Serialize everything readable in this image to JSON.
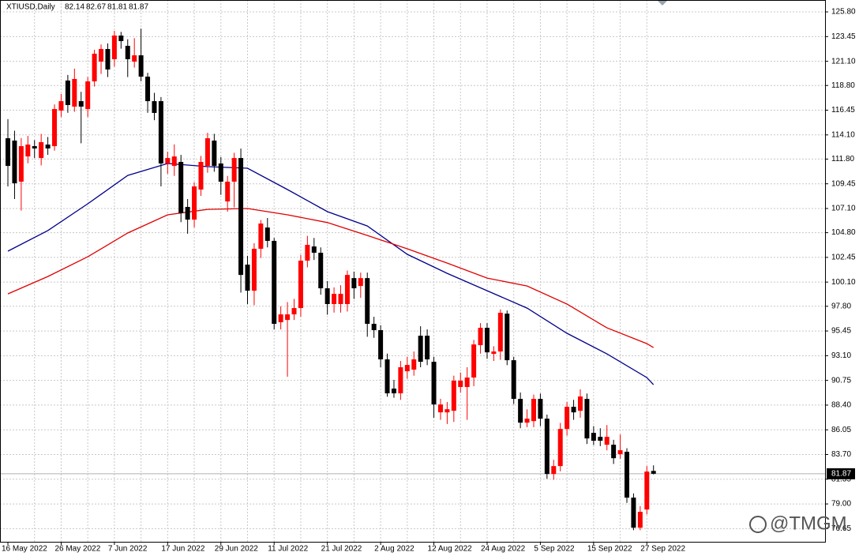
{
  "chart_data": {
    "type": "candlestick",
    "title": "XTIUSD,Daily",
    "watermark": "@TMGM",
    "up_color": "#ff0000",
    "down_color": "#000000",
    "grid": true,
    "ylim": [
      75.4,
      126.93
    ],
    "yticks": [
      {
        "value": 125.8,
        "label": "125.80"
      },
      123.45,
      {
        "value": 121.1,
        "label": "121.10"
      },
      {
        "value": 118.8,
        "label": "118.80"
      },
      116.45,
      {
        "value": 114.1,
        "label": "114.10"
      },
      {
        "value": 111.8,
        "label": "111.80"
      },
      109.45,
      {
        "value": 107.1,
        "label": "107.10"
      },
      {
        "value": 104.8,
        "label": "104.80"
      },
      102.45,
      {
        "value": 100.1,
        "label": "100.10"
      },
      {
        "value": 97.8,
        "label": "97.80"
      },
      95.45,
      {
        "value": 93.1,
        "label": "93.10"
      },
      90.75,
      {
        "value": 88.4,
        "label": "88.40"
      },
      86.05,
      {
        "value": 83.7,
        "label": "83.70"
      },
      81.35,
      {
        "value": 79.0,
        "label": "79.00"
      },
      76.65
    ],
    "categories": [
      "16 May 2022",
      null,
      null,
      null,
      null,
      null,
      null,
      null,
      "26 May 2022",
      null,
      null,
      null,
      null,
      null,
      null,
      null,
      "7 Jun 2022",
      null,
      null,
      null,
      null,
      null,
      null,
      null,
      "17 Jun 2022",
      null,
      null,
      null,
      null,
      null,
      null,
      null,
      "29 Jun 2022",
      null,
      null,
      null,
      null,
      null,
      null,
      null,
      "11 Jul 2022",
      null,
      null,
      null,
      null,
      null,
      null,
      null,
      "21 Jul 2022",
      null,
      null,
      null,
      null,
      null,
      null,
      null,
      "2 Aug 2022",
      null,
      null,
      null,
      null,
      null,
      null,
      null,
      "12 Aug 2022",
      null,
      null,
      null,
      null,
      null,
      null,
      null,
      "24 Aug 2022",
      null,
      null,
      null,
      null,
      null,
      null,
      null,
      "5 Sep 2022",
      null,
      null,
      null,
      null,
      null,
      null,
      null,
      "15 Sep 2022",
      null,
      null,
      null,
      null,
      null,
      null,
      null,
      "27 Sep 2022",
      null
    ],
    "ohlc": [
      [
        113.78,
        115.6,
        109.2,
        111.15
      ],
      [
        113.56,
        114.5,
        108.0,
        109.5
      ],
      [
        109.65,
        113.8,
        106.9,
        113.03
      ],
      [
        112.05,
        114.0,
        111.4,
        113.18
      ],
      [
        113.03,
        113.6,
        111.9,
        112.81
      ],
      [
        111.9,
        114.2,
        111.2,
        113.41
      ],
      [
        113.18,
        113.9,
        112.2,
        112.81
      ],
      [
        113.03,
        117.0,
        112.6,
        116.56
      ],
      [
        116.41,
        118.0,
        115.8,
        117.31
      ],
      [
        119.27,
        119.8,
        116.2,
        116.94
      ],
      [
        116.79,
        120.4,
        116.3,
        119.42
      ],
      [
        117.31,
        118.2,
        113.3,
        116.79
      ],
      [
        116.56,
        119.6,
        115.8,
        119.19
      ],
      [
        119.19,
        122.2,
        118.7,
        121.82
      ],
      [
        121.07,
        122.7,
        119.9,
        122.27
      ],
      [
        122.27,
        122.8,
        119.6,
        120.32
      ],
      [
        121.3,
        124.0,
        120.6,
        123.55
      ],
      [
        123.55,
        123.9,
        122.3,
        123.02
      ],
      [
        122.57,
        123.2,
        119.6,
        121.3
      ],
      [
        121.07,
        123.3,
        120.5,
        121.67
      ],
      [
        121.67,
        124.2,
        119.2,
        119.64
      ],
      [
        119.64,
        120.0,
        116.2,
        117.31
      ],
      [
        117.31,
        118.1,
        115.5,
        116.19
      ],
      [
        117.31,
        117.7,
        109.2,
        111.38
      ],
      [
        111.38,
        112.5,
        110.4,
        111.9
      ],
      [
        111.15,
        113.2,
        110.2,
        112.05
      ],
      [
        111.53,
        112.2,
        105.8,
        106.65
      ],
      [
        107.25,
        108.0,
        104.7,
        106.04
      ],
      [
        106.04,
        109.6,
        105.3,
        109.2
      ],
      [
        108.9,
        112.1,
        108.3,
        111.53
      ],
      [
        111.15,
        114.3,
        110.5,
        113.78
      ],
      [
        113.56,
        114.2,
        110.6,
        111.15
      ],
      [
        111.38,
        112.0,
        108.4,
        109.65
      ],
      [
        107.77,
        110.2,
        106.8,
        109.65
      ],
      [
        109.65,
        112.4,
        107.2,
        111.9
      ],
      [
        111.9,
        112.8,
        99.1,
        100.78
      ],
      [
        101.76,
        102.6,
        98.0,
        99.28
      ],
      [
        99.28,
        103.8,
        97.9,
        103.27
      ],
      [
        103.27,
        106.0,
        102.4,
        105.67
      ],
      [
        105.29,
        106.2,
        103.4,
        104.02
      ],
      [
        104.02,
        104.3,
        95.6,
        96.13
      ],
      [
        96.28,
        97.8,
        95.6,
        97.03
      ],
      [
        96.5,
        98.2,
        91.1,
        97.03
      ],
      [
        97.03,
        98.5,
        96.5,
        97.63
      ],
      [
        97.63,
        102.7,
        96.8,
        102.14
      ],
      [
        102.14,
        104.5,
        101.5,
        103.64
      ],
      [
        103.49,
        104.3,
        102.2,
        102.89
      ],
      [
        102.89,
        103.4,
        98.9,
        99.51
      ],
      [
        99.51,
        100.2,
        97.0,
        98.01
      ],
      [
        98.01,
        99.6,
        97.2,
        98.98
      ],
      [
        98.01,
        99.8,
        97.2,
        98.98
      ],
      [
        98.01,
        101.2,
        97.3,
        100.78
      ],
      [
        100.48,
        101.1,
        98.5,
        99.51
      ],
      [
        99.73,
        101.0,
        98.6,
        100.48
      ],
      [
        100.48,
        101.0,
        94.9,
        96.13
      ],
      [
        96.13,
        96.8,
        94.8,
        95.53
      ],
      [
        95.53,
        96.0,
        92.0,
        92.75
      ],
      [
        92.75,
        93.3,
        89.2,
        89.52
      ],
      [
        89.97,
        90.8,
        89.1,
        89.52
      ],
      [
        89.52,
        92.6,
        88.9,
        92.0
      ],
      [
        91.62,
        93.0,
        90.9,
        92.22
      ],
      [
        91.77,
        93.5,
        91.2,
        92.75
      ],
      [
        95.0,
        95.9,
        92.0,
        92.52
      ],
      [
        95.0,
        95.6,
        92.2,
        92.75
      ],
      [
        92.52,
        93.0,
        87.2,
        88.46
      ],
      [
        87.71,
        89.0,
        87.0,
        88.46
      ],
      [
        87.71,
        88.7,
        86.6,
        88.01
      ],
      [
        87.86,
        91.2,
        86.8,
        90.72
      ],
      [
        90.12,
        91.5,
        89.6,
        90.72
      ],
      [
        90.12,
        92.0,
        87.0,
        91.02
      ],
      [
        91.02,
        94.6,
        90.2,
        94.17
      ],
      [
        94.1,
        96.2,
        93.3,
        95.75
      ],
      [
        95.75,
        96.2,
        92.8,
        93.42
      ],
      [
        93.27,
        94.0,
        92.6,
        93.5
      ],
      [
        93.5,
        97.5,
        92.7,
        97.18
      ],
      [
        97.1,
        97.4,
        92.2,
        92.67
      ],
      [
        92.67,
        93.0,
        88.5,
        88.99
      ],
      [
        88.99,
        89.6,
        86.2,
        86.73
      ],
      [
        86.73,
        88.0,
        86.3,
        87.11
      ],
      [
        86.88,
        89.4,
        86.3,
        88.99
      ],
      [
        88.99,
        89.5,
        86.4,
        87.11
      ],
      [
        87.11,
        87.5,
        81.4,
        81.85
      ],
      [
        81.85,
        83.2,
        81.3,
        82.6
      ],
      [
        82.6,
        86.7,
        82.1,
        86.13
      ],
      [
        86.13,
        88.7,
        85.5,
        88.24
      ],
      [
        88.24,
        88.9,
        87.0,
        87.71
      ],
      [
        87.86,
        89.9,
        87.2,
        89.22
      ],
      [
        88.99,
        89.5,
        84.7,
        85.23
      ],
      [
        85.76,
        86.4,
        84.6,
        85.01
      ],
      [
        85.38,
        86.2,
        84.5,
        85.01
      ],
      [
        84.63,
        86.5,
        84.1,
        85.38
      ],
      [
        84.63,
        85.1,
        82.8,
        83.35
      ],
      [
        83.73,
        85.6,
        83.3,
        84.11
      ],
      [
        83.96,
        84.3,
        79.1,
        79.6
      ],
      [
        79.6,
        80.0,
        76.5,
        76.74
      ],
      [
        76.74,
        78.8,
        76.5,
        78.25
      ],
      [
        78.47,
        82.6,
        78.0,
        82.08
      ],
      [
        82.14,
        82.67,
        81.81,
        81.87
      ]
    ],
    "lines": [
      {
        "color": "#00008b",
        "x": [
          0,
          6,
          12,
          18,
          24,
          30,
          36,
          42,
          48,
          54,
          60,
          66,
          72,
          78,
          84,
          90,
          96,
          97
        ],
        "values": [
          103.04,
          105.0,
          107.55,
          110.25,
          111.38,
          111.08,
          110.93,
          108.9,
          106.8,
          105.44,
          102.74,
          100.93,
          99.28,
          97.63,
          95.23,
          93.27,
          91.02,
          90.34
        ]
      },
      {
        "color": "#e00000",
        "x": [
          0,
          6,
          12,
          18,
          24,
          30,
          36,
          42,
          48,
          54,
          60,
          66,
          72,
          78,
          84,
          90,
          96,
          97
        ],
        "values": [
          98.98,
          100.63,
          102.51,
          104.77,
          106.5,
          107.02,
          107.1,
          106.5,
          105.76,
          104.54,
          103.27,
          101.91,
          100.48,
          99.73,
          98.01,
          95.75,
          94.25,
          93.87
        ]
      }
    ]
  }
}
